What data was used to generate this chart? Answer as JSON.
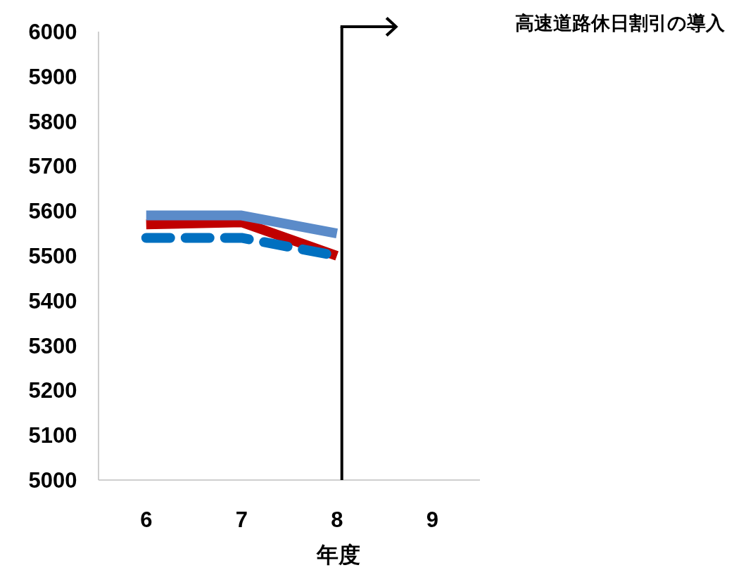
{
  "chart_data": {
    "type": "line",
    "xlabel": "年度",
    "categories": [
      "6",
      "7",
      "8",
      "9"
    ],
    "series": [
      {
        "color": "#c00000",
        "line_style": "solid",
        "values": [
          5570,
          5575,
          5500,
          null
        ]
      },
      {
        "color": "#0070c0",
        "line_style": "dashed",
        "values": [
          5540,
          5540,
          5500,
          null
        ]
      },
      {
        "color": "#5b8bc9",
        "line_style": "solid",
        "values": [
          5590,
          5590,
          5550,
          null
        ]
      }
    ],
    "ylim": [
      5000,
      6000
    ],
    "yticks": [
      5000,
      5100,
      5200,
      5300,
      5400,
      5500,
      5600,
      5700,
      5800,
      5900,
      6000
    ],
    "ref_lines": [
      {
        "axis": "x",
        "value": "8",
        "label": "高速道路休日割引の導入",
        "color": "#000000"
      }
    ]
  }
}
